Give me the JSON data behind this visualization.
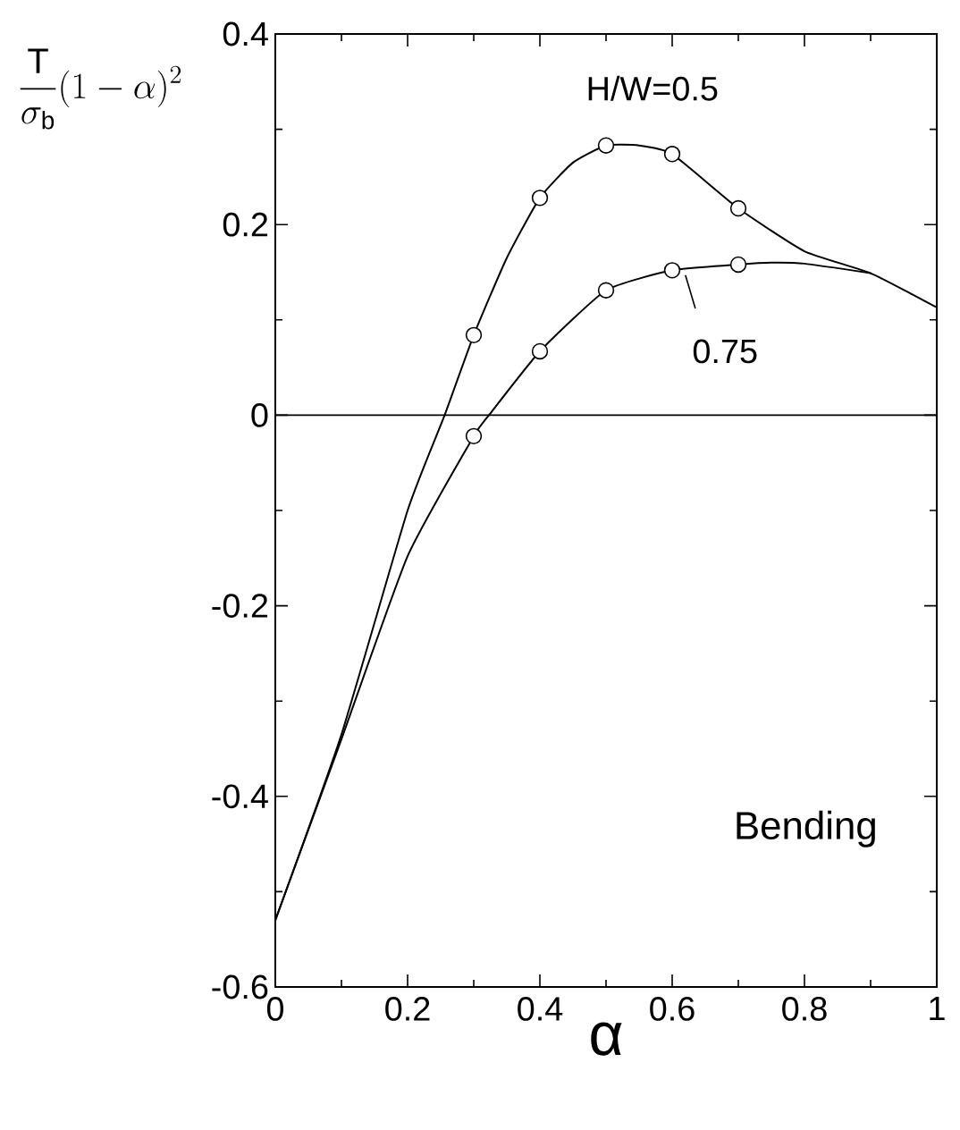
{
  "chart_data": {
    "type": "line",
    "xlabel": "α",
    "ylabel": "\\frac{\\mathrm{T}}{\\sigma_\\mathrm{b}}(1-\\alpha)^2",
    "xlim": [
      0,
      1
    ],
    "ylim": [
      -0.6,
      0.4
    ],
    "xticks": [
      0,
      0.2,
      0.4,
      0.6,
      0.8,
      1
    ],
    "yticks": [
      -0.6,
      -0.4,
      -0.2,
      0,
      0.2,
      0.4
    ],
    "grid": false,
    "marker": "none",
    "line_style": "solid",
    "ref_lines": [
      {
        "axis": "y",
        "value": 0,
        "color": "#000000"
      }
    ],
    "annotations": [
      "Bending",
      {
        "text": "H/W=0.5",
        "x": 0.5,
        "y": 0.283
      },
      {
        "text": "0.75",
        "x": 0.6,
        "y": 0.152
      }
    ],
    "series": [
      {
        "color": "#000000",
        "x": [
          0,
          0.1,
          0.2,
          0.256,
          0.3,
          0.35,
          0.4,
          0.45,
          0.5,
          0.55,
          0.6,
          0.7,
          0.8,
          0.9,
          1.0
        ],
        "values": [
          -0.53,
          -0.335,
          -0.1,
          0,
          0.084,
          0.165,
          0.228,
          0.265,
          0.283,
          0.283,
          0.274,
          0.217,
          0.172,
          0.149,
          0.113
        ]
      },
      {
        "color": "#000000",
        "x": [
          0,
          0.1,
          0.2,
          0.3,
          0.323,
          0.4,
          0.5,
          0.6,
          0.7,
          0.75,
          0.8,
          0.9
        ],
        "values": [
          -0.53,
          -0.34,
          -0.148,
          -0.022,
          0,
          0.067,
          0.131,
          0.152,
          0.158,
          0.16,
          0.159,
          0.149
        ]
      },
      {
        "type": "scatter",
        "marker": "circle",
        "color": "#000000",
        "x": [
          0.3,
          0.4,
          0.5,
          0.6,
          0.7
        ],
        "values": [
          0.084,
          0.228,
          0.283,
          0.274,
          0.217
        ]
      },
      {
        "type": "scatter",
        "marker": "circle",
        "color": "#000000",
        "x": [
          0.3,
          0.4,
          0.5,
          0.6,
          0.7
        ],
        "values": [
          -0.022,
          0.067,
          0.131,
          0.152,
          0.158
        ]
      }
    ]
  }
}
